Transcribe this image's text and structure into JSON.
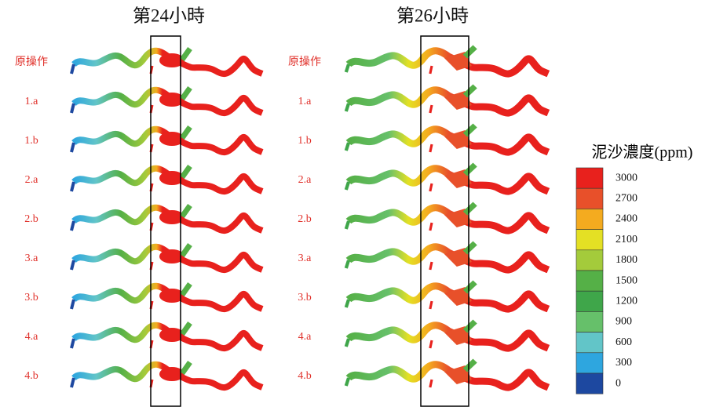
{
  "panels": [
    {
      "title": "第24小時"
    },
    {
      "title": "第26小時"
    }
  ],
  "row_labels": [
    "原操作",
    "1.a",
    "1.b",
    "2.a",
    "2.b",
    "3.a",
    "3.b",
    "4.a",
    "4.b"
  ],
  "legend": {
    "title": "泥沙濃度(ppm)",
    "ticks": [
      "3000",
      "2700",
      "2400",
      "2100",
      "1800",
      "1500",
      "1200",
      "900",
      "600",
      "300",
      "0"
    ],
    "colors": [
      "#e8211d",
      "#e8502a",
      "#f4ab1f",
      "#e4e024",
      "#a4cb3b",
      "#55b047",
      "#3fa64a",
      "#66c06a",
      "#62c5c8",
      "#2ea6df",
      "#1d48a0"
    ]
  }
}
